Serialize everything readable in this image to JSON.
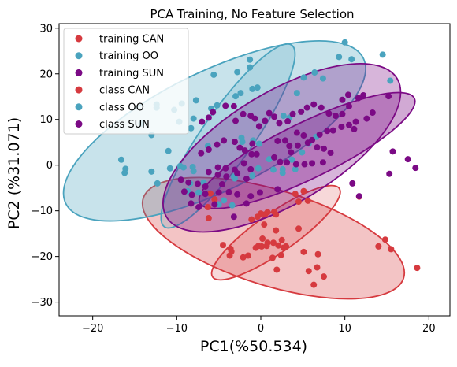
{
  "chart_data": {
    "type": "scatter",
    "title": "PCA Training, No Feature Selection",
    "xlabel": "PC1(%50.534)",
    "ylabel": "PC2 (%31.071)",
    "xlim": [
      -24,
      22.5
    ],
    "ylim": [
      -33,
      31
    ],
    "xticks": [
      -20,
      -10,
      0,
      10,
      20
    ],
    "yticks": [
      -30,
      -20,
      -10,
      0,
      10,
      20,
      30
    ],
    "grid": false,
    "legend_position": "top-left",
    "legend": [
      {
        "label": "training CAN",
        "color": "#d63a3f"
      },
      {
        "label": "training OO",
        "color": "#4aa3be"
      },
      {
        "label": "training SUN",
        "color": "#7b0a85"
      },
      {
        "label": "class CAN",
        "color": "#d63a3f"
      },
      {
        "label": "class OO",
        "color": "#4aa3be"
      },
      {
        "label": "class SUN",
        "color": "#7b0a85"
      }
    ],
    "series": [
      {
        "name": "training CAN",
        "color": "#d63a3f",
        "points": [
          [
            -4.5,
            -17.5
          ],
          [
            -3.6,
            -18.3
          ],
          [
            -3.5,
            -18.9
          ],
          [
            -3.7,
            -19.8
          ],
          [
            -2.1,
            -20.2
          ],
          [
            -1.5,
            -19.8
          ],
          [
            -0.6,
            -18.1
          ],
          [
            -0.3,
            -17.7
          ],
          [
            0.1,
            -17.8
          ],
          [
            0.7,
            -17.7
          ],
          [
            0.8,
            -17.0
          ],
          [
            1.5,
            -17.0
          ],
          [
            2.1,
            -17.6
          ],
          [
            2.7,
            -18.1
          ],
          [
            2.4,
            -19.7
          ],
          [
            1.4,
            -20.3
          ],
          [
            1.9,
            -22.9
          ],
          [
            2.5,
            -16.4
          ],
          [
            3.0,
            -17.8
          ],
          [
            5.1,
            -19.0
          ],
          [
            6.8,
            -19.5
          ],
          [
            5.7,
            -23.2
          ],
          [
            6.3,
            -26.2
          ],
          [
            6.7,
            -22.4
          ],
          [
            7.5,
            -24.4
          ],
          [
            0.4,
            -13.0
          ],
          [
            0.2,
            -16.1
          ],
          [
            1.8,
            -14.3
          ],
          [
            4.5,
            -13.9
          ],
          [
            4.5,
            -8.0
          ],
          [
            4.1,
            -6.3
          ],
          [
            5.1,
            -5.7
          ],
          [
            5.6,
            -7.8
          ],
          [
            1.6,
            -10.2
          ],
          [
            0.5,
            -10.8
          ],
          [
            0.0,
            -10.6
          ],
          [
            0.8,
            -10.3
          ],
          [
            1.8,
            -10.8
          ],
          [
            -0.4,
            -11.3
          ],
          [
            -1.1,
            -11.9
          ],
          [
            -6.2,
            -11.6
          ],
          [
            -6.3,
            -9.2
          ],
          [
            -5.5,
            -7.5
          ],
          [
            -6.0,
            -6.2
          ],
          [
            14.0,
            -17.8
          ],
          [
            14.8,
            -16.3
          ],
          [
            15.5,
            -18.4
          ],
          [
            18.6,
            -22.5
          ],
          [
            11.7,
            -6.9
          ]
        ]
      },
      {
        "name": "training OO",
        "color": "#4aa3be",
        "points": [
          [
            -16.6,
            1.2
          ],
          [
            -16.1,
            -0.8
          ],
          [
            -16.2,
            -1.7
          ],
          [
            -13.0,
            6.6
          ],
          [
            -12.4,
            12.6
          ],
          [
            -12.4,
            13.3
          ],
          [
            -14.2,
            9.1
          ],
          [
            -13.0,
            -1.4
          ],
          [
            -12.3,
            -4.0
          ],
          [
            -10.8,
            -0.7
          ],
          [
            -9.6,
            -0.2
          ],
          [
            -9.2,
            -0.5
          ],
          [
            -11.0,
            3.1
          ],
          [
            -9.7,
            9.5
          ],
          [
            -10.3,
            12.1
          ],
          [
            -9.4,
            13.5
          ],
          [
            -8.0,
            10.2
          ],
          [
            -8.3,
            8.1
          ],
          [
            -8.1,
            -0.4
          ],
          [
            -8.0,
            -1.3
          ],
          [
            -8.4,
            -4.0
          ],
          [
            -8.7,
            -5.7
          ],
          [
            -7.4,
            -6.0
          ],
          [
            -7.7,
            14.2
          ],
          [
            -5.9,
            12.4
          ],
          [
            -5.2,
            13.1
          ],
          [
            -6.3,
            4.2
          ],
          [
            -6.8,
            -3.8
          ],
          [
            -5.6,
            19.8
          ],
          [
            -3.0,
            15.1
          ],
          [
            -2.4,
            15.8
          ],
          [
            -2.8,
            20.4
          ],
          [
            -2.3,
            6.0
          ],
          [
            -2.2,
            5.1
          ],
          [
            -1.3,
            23.1
          ],
          [
            -1.3,
            21.4
          ],
          [
            -1.0,
            16.7
          ],
          [
            -0.4,
            17.0
          ],
          [
            -0.9,
            5.4
          ],
          [
            -0.2,
            4.7
          ],
          [
            -1.0,
            -2.3
          ],
          [
            -3.2,
            -2.5
          ],
          [
            -3.1,
            -2.9
          ],
          [
            -0.3,
            -0.7
          ],
          [
            1.0,
            1.3
          ],
          [
            1.5,
            -1.0
          ],
          [
            2.6,
            -1.7
          ],
          [
            2.6,
            -0.9
          ],
          [
            4.1,
            -0.9
          ],
          [
            3.7,
            1.2
          ],
          [
            4.9,
            2.8
          ],
          [
            5.7,
            4.7
          ],
          [
            6.6,
            6.2
          ],
          [
            2.7,
            10.8
          ],
          [
            3.4,
            10.4
          ],
          [
            4.3,
            15.8
          ],
          [
            5.1,
            19.2
          ],
          [
            6.4,
            20.3
          ],
          [
            7.4,
            19.0
          ],
          [
            9.3,
            23.7
          ],
          [
            10.0,
            26.9
          ],
          [
            10.8,
            23.2
          ],
          [
            14.5,
            24.2
          ],
          [
            15.4,
            18.5
          ],
          [
            -4.4,
            -7.7
          ],
          [
            -3.4,
            -8.8
          ],
          [
            -5.0,
            -8.6
          ]
        ]
      },
      {
        "name": "training SUN",
        "color": "#7b0a85",
        "points": [
          [
            -9.5,
            -3.2
          ],
          [
            -8.6,
            -3.8
          ],
          [
            -7.5,
            -4.1
          ],
          [
            -6.6,
            -4.7
          ],
          [
            -5.1,
            -2.1
          ],
          [
            -4.1,
            -2.5
          ],
          [
            -2.8,
            -1.8
          ],
          [
            -1.7,
            -3.0
          ],
          [
            -7.0,
            9.5
          ],
          [
            -6.2,
            10.4
          ],
          [
            -5.7,
            11.6
          ],
          [
            -4.2,
            13.0
          ],
          [
            -3.2,
            12.9
          ],
          [
            -3.0,
            9.7
          ],
          [
            -2.1,
            11.2
          ],
          [
            -1.2,
            10.8
          ],
          [
            -0.7,
            10.2
          ],
          [
            -0.2,
            8.5
          ],
          [
            0.5,
            9.7
          ],
          [
            1.0,
            11.4
          ],
          [
            1.6,
            10.6
          ],
          [
            2.2,
            9.2
          ],
          [
            3.2,
            9.6
          ],
          [
            3.8,
            11.2
          ],
          [
            4.8,
            11.7
          ],
          [
            5.5,
            12.6
          ],
          [
            6.3,
            13.3
          ],
          [
            7.2,
            12.6
          ],
          [
            8.1,
            11.3
          ],
          [
            8.9,
            10.8
          ],
          [
            9.7,
            11.2
          ],
          [
            10.5,
            12.9
          ],
          [
            11.3,
            9.5
          ],
          [
            12.6,
            10.2
          ],
          [
            13.3,
            11.5
          ],
          [
            4.3,
            7.1
          ],
          [
            5.1,
            6.5
          ],
          [
            6.1,
            5.5
          ],
          [
            7.0,
            6.7
          ],
          [
            7.9,
            7.5
          ],
          [
            8.6,
            7.6
          ],
          [
            9.6,
            8.4
          ],
          [
            10.5,
            8.8
          ],
          [
            11.1,
            7.9
          ],
          [
            2.0,
            5.3
          ],
          [
            2.9,
            5.4
          ],
          [
            3.4,
            4.2
          ],
          [
            3.6,
            2.8
          ],
          [
            4.4,
            4.3
          ],
          [
            5.6,
            4.9
          ],
          [
            6.7,
            3.9
          ],
          [
            7.5,
            3.6
          ],
          [
            8.3,
            2.7
          ],
          [
            1.6,
            1.7
          ],
          [
            2.3,
            0.7
          ],
          [
            3.1,
            0.6
          ],
          [
            4.2,
            0.2
          ],
          [
            5.2,
            0.2
          ],
          [
            6.1,
            0.4
          ],
          [
            7.4,
            0.6
          ],
          [
            -7.1,
            2.6
          ],
          [
            -6.2,
            3.4
          ],
          [
            -5.2,
            4.5
          ],
          [
            -4.4,
            5.4
          ],
          [
            -3.1,
            5.1
          ],
          [
            -2.5,
            3.8
          ],
          [
            -1.9,
            3.2
          ],
          [
            -1.1,
            2.4
          ],
          [
            -0.5,
            2.4
          ],
          [
            -9.1,
            -5.8
          ],
          [
            -8.2,
            -6.5
          ],
          [
            -6.6,
            -6.3
          ],
          [
            -5.0,
            -6.0
          ],
          [
            -3.8,
            -5.9
          ],
          [
            -2.8,
            -6.4
          ],
          [
            -1.2,
            -6.8
          ],
          [
            -0.1,
            -6.0
          ],
          [
            -8.3,
            -8.4
          ],
          [
            -7.4,
            -9.2
          ],
          [
            -5.5,
            -8.6
          ],
          [
            -3.2,
            -11.3
          ],
          [
            -1.7,
            -8.4
          ],
          [
            -6.2,
            -1.5
          ],
          [
            -5.1,
            -0.5
          ],
          [
            -4.2,
            -0.7
          ],
          [
            -3.1,
            -1.0
          ],
          [
            -2.0,
            0.4
          ],
          [
            -1.2,
            -0.9
          ],
          [
            9.7,
            14.3
          ],
          [
            10.4,
            15.4
          ],
          [
            11.6,
            14.7
          ],
          [
            12.2,
            15.3
          ],
          [
            15.2,
            15.1
          ],
          [
            11.7,
            -6.8
          ],
          [
            10.9,
            -4.0
          ],
          [
            15.7,
            3.0
          ],
          [
            17.5,
            1.3
          ],
          [
            18.4,
            -0.6
          ],
          [
            15.3,
            -1.9
          ],
          [
            -1.0,
            4.7
          ],
          [
            2.0,
            -5.3
          ],
          [
            -4.6,
            -4.2
          ]
        ]
      }
    ],
    "ellipses": [
      {
        "name": "class CAN",
        "color": "#d63a3f",
        "cx": 1.5,
        "cy": -16.0,
        "rx": 16.2,
        "ry": 10.5,
        "angle": -17,
        "fill_opacity": 0.3
      },
      {
        "name": "class CAN",
        "color": "#d63a3f",
        "cx": 1.8,
        "cy": -14.8,
        "rx": 9.2,
        "ry": 4.3,
        "angle": 35,
        "fill_opacity": 0.2
      },
      {
        "name": "class OO",
        "color": "#4aa3be",
        "cx": -5.5,
        "cy": 7.5,
        "rx": 19.7,
        "ry": 13.0,
        "angle": 26,
        "fill_opacity": 0.3
      },
      {
        "name": "class OO",
        "color": "#4aa3be",
        "cx": -3.9,
        "cy": 6.4,
        "rx": 13.2,
        "ry": 5.6,
        "angle": 55,
        "fill_opacity": 0.2
      },
      {
        "name": "class SUN",
        "color": "#7b0a85",
        "cx": 2.5,
        "cy": 3.8,
        "rx": 16.0,
        "ry": 12.2,
        "angle": 31,
        "fill_opacity": 0.3
      },
      {
        "name": "class SUN",
        "color": "#7b0a85",
        "cx": 5.5,
        "cy": 3.2,
        "rx": 14.2,
        "ry": 6.1,
        "angle": 26,
        "fill_opacity": 0.35
      }
    ]
  }
}
